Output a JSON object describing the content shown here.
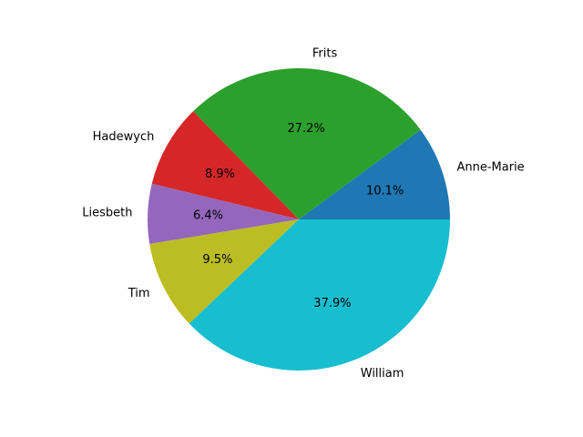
{
  "chart_data": {
    "type": "pie",
    "title": "",
    "start_angle_deg": 0,
    "direction": "counterclockwise",
    "slices": [
      {
        "label": "Anne-Marie",
        "value": 10.1,
        "pct_text": "10.1%",
        "color": "#1f77b4"
      },
      {
        "label": "Frits",
        "value": 27.2,
        "pct_text": "27.2%",
        "color": "#2ca02c"
      },
      {
        "label": "Hadewych",
        "value": 8.9,
        "pct_text": "8.9%",
        "color": "#d62728"
      },
      {
        "label": "Liesbeth",
        "value": 6.4,
        "pct_text": "6.4%",
        "color": "#9467bd"
      },
      {
        "label": "Tim",
        "value": 9.5,
        "pct_text": "9.5%",
        "color": "#bcbd22"
      },
      {
        "label": "William",
        "value": 37.9,
        "pct_text": "37.9%",
        "color": "#17becf"
      }
    ]
  }
}
